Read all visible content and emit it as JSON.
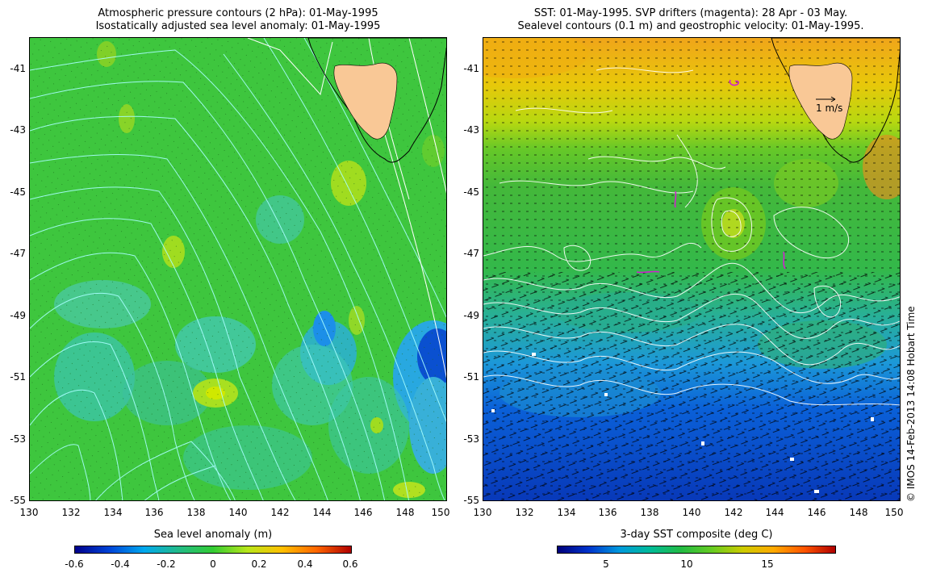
{
  "left_panel": {
    "title_line1": "Atmospheric pressure contours (2 hPa): 01-May-1995",
    "title_line2": "Isostatically adjusted sea level anomaly: 01-May-1995",
    "colorbar": {
      "label": "Sea level anomaly (m)",
      "ticks": [
        "-0.6",
        "-0.4",
        "-0.2",
        "0",
        "0.2",
        "0.4",
        "0.6"
      ],
      "colors": [
        "#00008b",
        "#0044d8",
        "#00a8ee",
        "#22bb88",
        "#33cc33",
        "#b8e61a",
        "#ffc000",
        "#ff6600",
        "#b00000"
      ]
    }
  },
  "right_panel": {
    "title_line1": "SST: 01-May-1995. SVP drifters (magenta): 28 Apr - 03 May.",
    "title_line2": "Sealevel contours (0.1 m) and geostrophic velocity: 01-May-1995.",
    "velocity_scale_label": "1 m/s",
    "colorbar": {
      "label": "3-day SST composite (deg C)",
      "ticks": [
        "5",
        "10",
        "15"
      ],
      "colors": [
        "#00007a",
        "#0033cc",
        "#0099dd",
        "#00bb99",
        "#22bb44",
        "#66cc22",
        "#cccc00",
        "#ffaa00",
        "#ff5500",
        "#b00000"
      ]
    }
  },
  "axes": {
    "x_ticks": [
      "130",
      "132",
      "134",
      "136",
      "138",
      "140",
      "142",
      "144",
      "146",
      "148",
      "150"
    ],
    "y_ticks": [
      "-41",
      "-43",
      "-45",
      "-47",
      "-49",
      "-51",
      "-53",
      "-55"
    ]
  },
  "credit": "© IMOS 14-Feb-2013 14:08 Hobart Time",
  "colors": {
    "land": "#f9c896",
    "left_base": "#3ec63e",
    "sst_warm": "#f0a51a",
    "sst_mid": "#33bb44",
    "sst_cold": "#0a40c8",
    "drifter": "#d020d0"
  }
}
